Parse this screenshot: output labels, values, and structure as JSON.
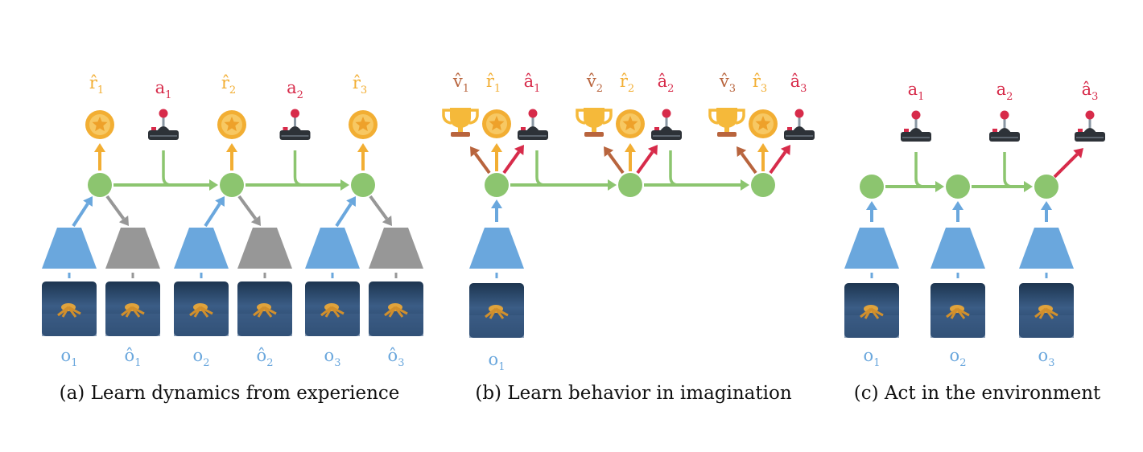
{
  "colors": {
    "latent": "#8cc56f",
    "encoder": "#6aa7dd",
    "decoder": "#979797",
    "reward": "#f2ae33",
    "action": "#d72b4a",
    "value": "#b8643d",
    "obs_label": "#6aa7dd",
    "transition": "#8cc56f"
  },
  "captions": {
    "a": "(a) Learn dynamics from experience",
    "b": "(b) Learn behavior in imagination",
    "c": "(c) Act in the environment"
  },
  "panel_a": {
    "rewards": [
      {
        "base": "r̂",
        "sub": "1"
      },
      {
        "base": "r̂",
        "sub": "2"
      },
      {
        "base": "r̂",
        "sub": "3"
      }
    ],
    "actions": [
      {
        "base": "a",
        "sub": "1"
      },
      {
        "base": "a",
        "sub": "2"
      }
    ],
    "observations": [
      {
        "base": "o",
        "sub": "1"
      },
      {
        "base": "ô",
        "sub": "1"
      },
      {
        "base": "o",
        "sub": "2"
      },
      {
        "base": "ô",
        "sub": "2"
      },
      {
        "base": "o",
        "sub": "3"
      },
      {
        "base": "ô",
        "sub": "3"
      }
    ]
  },
  "panel_b": {
    "values": [
      {
        "base": "v̂",
        "sub": "1"
      },
      {
        "base": "v̂",
        "sub": "2"
      },
      {
        "base": "v̂",
        "sub": "3"
      }
    ],
    "rewards": [
      {
        "base": "r̂",
        "sub": "1"
      },
      {
        "base": "r̂",
        "sub": "2"
      },
      {
        "base": "r̂",
        "sub": "3"
      }
    ],
    "actions": [
      {
        "base": "â",
        "sub": "1"
      },
      {
        "base": "â",
        "sub": "2"
      },
      {
        "base": "â",
        "sub": "3"
      }
    ],
    "observations": [
      {
        "base": "o",
        "sub": "1"
      }
    ]
  },
  "panel_c": {
    "actions": [
      {
        "base": "a",
        "sub": "1"
      },
      {
        "base": "a",
        "sub": "2"
      },
      {
        "base": "â",
        "sub": "3"
      }
    ],
    "observations": [
      {
        "base": "o",
        "sub": "1"
      },
      {
        "base": "o",
        "sub": "2"
      },
      {
        "base": "o",
        "sub": "3"
      }
    ]
  },
  "icons": [
    "coin-star-icon",
    "joystick-icon",
    "trophy-icon",
    "robot-ant-image"
  ]
}
